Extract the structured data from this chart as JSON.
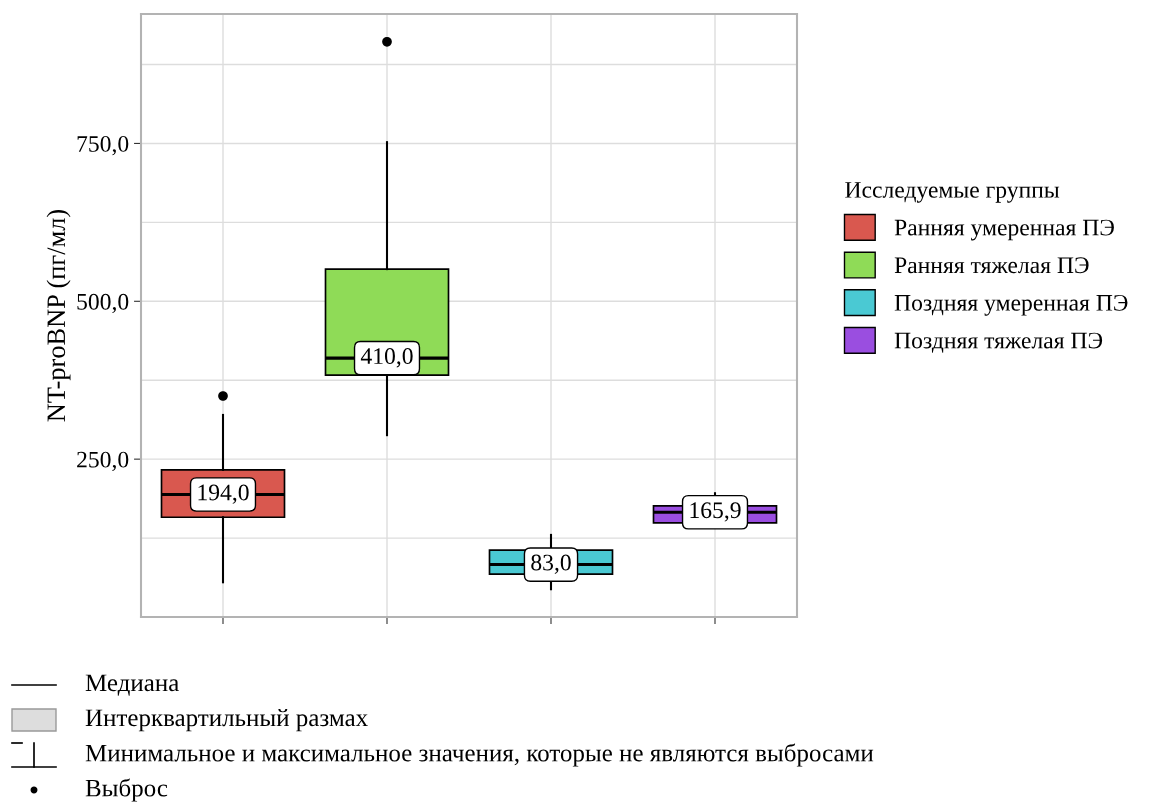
{
  "chart_data": {
    "type": "box",
    "ylabel": "NT-proBNP (пг/мл)",
    "legend_title": "Исследуемые группы",
    "legend": "right",
    "grid": true,
    "categories": [
      null,
      null,
      null,
      null
    ],
    "ylim": [
      0,
      955
    ],
    "yticks": [
      {
        "value": 125,
        "label": null
      },
      {
        "value": 250,
        "label": "250,0"
      },
      {
        "value": 375,
        "label": null
      },
      {
        "value": 500,
        "label": "500,0"
      },
      {
        "value": 625,
        "label": null
      },
      {
        "value": 750,
        "label": "750,0"
      },
      {
        "value": 875,
        "label": null
      }
    ],
    "series": [
      {
        "name": "Ранняя умеренная ПЭ",
        "color": "#d9584f",
        "boxes": [
          {
            "low": 55,
            "q1": 158,
            "median": 194,
            "q3": 233,
            "high": 320,
            "outliers": [
              350
            ]
          },
          null,
          null,
          null
        ]
      },
      {
        "name": "Ранняя тяжелая ПЭ",
        "color": "#8fdb57",
        "boxes": [
          null,
          {
            "low": 288,
            "q1": 383,
            "median": 410,
            "q3": 551,
            "high": 752,
            "outliers": [
              911
            ]
          },
          null,
          null
        ]
      },
      {
        "name": "Поздняя умеренная ПЭ",
        "color": "#4ac9d3",
        "boxes": [
          null,
          null,
          {
            "low": 44,
            "q1": 68,
            "median": 83,
            "q3": 106,
            "high": 130
          },
          null
        ]
      },
      {
        "name": "Поздняя тяжелая ПЭ",
        "color": "#9a4ee0",
        "boxes": [
          null,
          null,
          null,
          {
            "low": 149,
            "q1": 149,
            "median": 165.9,
            "q3": 176,
            "high": 196
          }
        ]
      }
    ],
    "annotations": [
      {
        "text": "194,0",
        "y": 194
      },
      {
        "text": "410,0",
        "y": 410
      },
      {
        "text": "83,0",
        "y": 83
      },
      {
        "text": "165,9",
        "y": 165.9
      },
      "Медиана",
      "Интерквартильный размах",
      "Минимальное и максимальное значения, которые не являются выбросами",
      "Выброс"
    ]
  }
}
